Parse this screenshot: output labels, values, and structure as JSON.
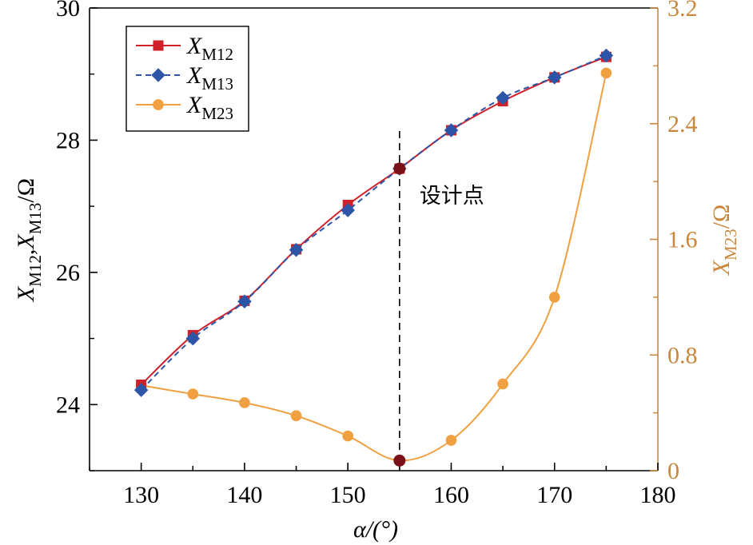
{
  "chart_data": {
    "type": "line",
    "x": [
      130,
      135,
      140,
      145,
      150,
      155,
      160,
      165,
      170,
      175
    ],
    "xlim": [
      125,
      180
    ],
    "xticks": [
      130,
      140,
      150,
      160,
      170,
      180
    ],
    "xlabel": "α/(°)",
    "ylim_left": [
      23,
      30
    ],
    "yticks_left": [
      24,
      26,
      28,
      30
    ],
    "ylabel_left": {
      "X1": "X",
      "sub1": "M12",
      "sep": ",",
      "X2": "X",
      "sub2": "M13",
      "unit": "/Ω"
    },
    "ylim_right": [
      0,
      3.2
    ],
    "yticks_right": [
      "0",
      "0.8",
      "1.6",
      "2.4",
      "3.2"
    ],
    "ylabel_right": {
      "X": "X",
      "sub": "M23",
      "unit": "/Ω"
    },
    "right_axis_color": "#c8873a",
    "series": [
      {
        "name": "X",
        "sub": "M12",
        "axis": "left",
        "color": "#d0202a",
        "marker": "square",
        "dash": "solid",
        "values": [
          24.3,
          25.05,
          25.57,
          26.35,
          27.02,
          27.57,
          28.15,
          28.59,
          28.95,
          29.26
        ]
      },
      {
        "name": "X",
        "sub": "M13",
        "axis": "left",
        "color": "#2c55a8",
        "marker": "diamond",
        "dash": "dashed",
        "values": [
          24.22,
          25.0,
          25.56,
          26.34,
          26.94,
          27.57,
          28.15,
          28.64,
          28.95,
          29.28
        ]
      },
      {
        "name": "X",
        "sub": "M23",
        "axis": "right",
        "color": "#f0a040",
        "marker": "circle",
        "dash": "solid",
        "values": [
          0.59,
          0.53,
          0.47,
          0.38,
          0.24,
          0.07,
          0.21,
          0.6,
          1.2,
          2.75
        ]
      }
    ],
    "design_point": {
      "x": 155,
      "label": "设计点",
      "left_value": 27.57,
      "right_value": 0.07,
      "color": "#7a1018"
    },
    "legend_position": "top-left"
  }
}
